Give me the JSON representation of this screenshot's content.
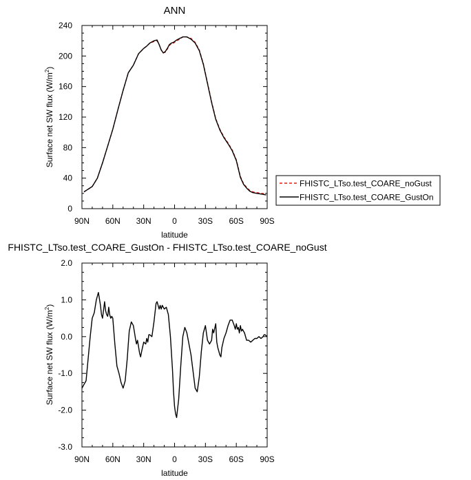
{
  "chart_data": [
    {
      "type": "line",
      "title": "ANN",
      "xlabel": "latitude",
      "ylabel": "Surface net SW flux (W/m",
      "ylabel_sup": "2",
      "ylabel_close": ")",
      "xlim": [
        90,
        -90
      ],
      "ylim": [
        0,
        240
      ],
      "xticks": [
        {
          "value": 90,
          "label": "90N"
        },
        {
          "value": 60,
          "label": "60N"
        },
        {
          "value": 30,
          "label": "30N"
        },
        {
          "value": 0,
          "label": "0"
        },
        {
          "value": -30,
          "label": "30S"
        },
        {
          "value": -60,
          "label": "60S"
        },
        {
          "value": -90,
          "label": "90S"
        }
      ],
      "yticks": [
        {
          "value": 0,
          "label": "0"
        },
        {
          "value": 40,
          "label": "40"
        },
        {
          "value": 80,
          "label": "80"
        },
        {
          "value": 120,
          "label": "120"
        },
        {
          "value": 160,
          "label": "160"
        },
        {
          "value": 200,
          "label": "200"
        },
        {
          "value": 240,
          "label": "240"
        }
      ],
      "legend_position": "right",
      "x": [
        88,
        80,
        75,
        70,
        65,
        60,
        55,
        50,
        45,
        40,
        35,
        30,
        27,
        24,
        20,
        17,
        15,
        13,
        11,
        9,
        7,
        5,
        3,
        1,
        -2,
        -5,
        -8,
        -12,
        -16,
        -20,
        -24,
        -28,
        -32,
        -36,
        -40,
        -44,
        -48,
        -52,
        -56,
        -60,
        -64,
        -67,
        -70,
        -73,
        -76,
        -80,
        -85,
        -89
      ],
      "series": [
        {
          "name": "FHISTC_LTso.test_COARE_noGust",
          "color": "#e8190f",
          "dash": "dashed",
          "values": [
            22,
            29,
            40,
            60,
            82,
            104,
            130,
            155,
            178,
            188,
            203,
            210,
            213,
            217,
            219,
            220,
            215,
            208,
            204,
            205,
            209,
            214,
            216,
            217,
            220,
            222,
            225,
            225,
            223,
            218,
            208,
            190,
            165,
            140,
            118,
            104,
            94,
            86,
            77,
            64,
            42,
            33,
            28,
            24,
            22,
            21,
            20,
            19
          ]
        },
        {
          "name": "FHISTC_LTso.test_COARE_GustOn",
          "color": "#000000",
          "dash": "solid",
          "values": [
            22,
            29,
            40,
            60,
            82,
            104,
            130,
            155,
            178,
            188,
            203,
            210,
            213,
            217,
            220,
            221,
            215,
            208,
            204,
            206,
            210,
            215,
            217,
            218,
            221,
            223,
            225,
            225,
            222,
            217,
            207,
            189,
            164,
            139,
            117,
            103,
            93,
            85,
            76,
            63,
            41,
            32,
            27,
            23,
            21,
            20,
            19,
            18
          ]
        }
      ]
    },
    {
      "type": "line",
      "title": "FHISTC_LTso.test_COARE_GustOn - FHISTC_LTso.test_COARE_noGust",
      "xlabel": "latitude",
      "ylabel": "Surface net SW flux (W/m",
      "ylabel_sup": "2",
      "ylabel_close": ")",
      "xlim": [
        90,
        -90
      ],
      "ylim": [
        -3.0,
        2.0
      ],
      "xticks": [
        {
          "value": 90,
          "label": "90N"
        },
        {
          "value": 60,
          "label": "60N"
        },
        {
          "value": 30,
          "label": "30N"
        },
        {
          "value": 0,
          "label": "0"
        },
        {
          "value": -30,
          "label": "30S"
        },
        {
          "value": -60,
          "label": "60S"
        },
        {
          "value": -90,
          "label": "90S"
        }
      ],
      "yticks": [
        {
          "value": -3.0,
          "label": "-3.0"
        },
        {
          "value": -2.0,
          "label": "-2.0"
        },
        {
          "value": -1.0,
          "label": "-1.0"
        },
        {
          "value": 0.0,
          "label": "0.0"
        },
        {
          "value": 1.0,
          "label": "1.0"
        },
        {
          "value": 2.0,
          "label": "2.0"
        }
      ],
      "series": [
        {
          "color": "#000000",
          "dash": "solid",
          "x": [
            90,
            88,
            86,
            84,
            82,
            80,
            78,
            76,
            74,
            72,
            71,
            70,
            68,
            67,
            66,
            65,
            64,
            63,
            62,
            61,
            60,
            58,
            56,
            54,
            52,
            50,
            48,
            46,
            45,
            44,
            42,
            40,
            38,
            37,
            36,
            34,
            33,
            32,
            30,
            28,
            27,
            26,
            25,
            24,
            22,
            20,
            18,
            17,
            16,
            15,
            14,
            13,
            12,
            11,
            10,
            8,
            6,
            4,
            2,
            1,
            0,
            -1,
            -2,
            -4,
            -6,
            -8,
            -10,
            -12,
            -14,
            -16,
            -18,
            -20,
            -22,
            -24,
            -26,
            -28,
            -30,
            -32,
            -34,
            -36,
            -37,
            -38,
            -40,
            -41,
            -42,
            -44,
            -45,
            -46,
            -48,
            -50,
            -52,
            -54,
            -56,
            -58,
            -59,
            -60,
            -61,
            -62,
            -63,
            -64,
            -65,
            -66,
            -68,
            -70,
            -72,
            -74,
            -76,
            -78,
            -80,
            -82,
            -84,
            -86,
            -87,
            -88,
            -90
          ],
          "values": [
            -1.4,
            -1.3,
            -1.2,
            -0.6,
            0.0,
            0.5,
            0.65,
            1.0,
            1.2,
            0.85,
            0.6,
            0.5,
            0.95,
            0.7,
            0.6,
            0.55,
            0.8,
            0.6,
            0.5,
            0.55,
            0.5,
            -0.2,
            -0.8,
            -1.0,
            -1.25,
            -1.4,
            -1.2,
            -0.6,
            -0.2,
            0.15,
            0.4,
            0.3,
            -0.05,
            -0.2,
            -0.1,
            -0.45,
            -0.55,
            -0.4,
            -0.15,
            -0.2,
            -0.05,
            -0.15,
            0.05,
            0.05,
            0.0,
            0.4,
            0.9,
            0.95,
            0.85,
            0.75,
            0.85,
            0.75,
            0.85,
            0.8,
            0.75,
            0.8,
            0.6,
            0.0,
            -0.9,
            -1.5,
            -1.9,
            -2.1,
            -2.2,
            -1.7,
            -0.8,
            0.0,
            0.25,
            0.1,
            -0.2,
            -0.5,
            -0.95,
            -1.4,
            -1.5,
            -1.1,
            -0.4,
            0.1,
            0.3,
            -0.1,
            -0.2,
            -0.1,
            0.2,
            0.1,
            0.35,
            -0.15,
            -0.3,
            -0.5,
            -0.55,
            -0.3,
            -0.05,
            0.1,
            0.3,
            0.45,
            0.45,
            0.3,
            0.2,
            0.35,
            0.2,
            0.25,
            0.1,
            0.3,
            0.15,
            0.2,
            0.1,
            -0.1,
            -0.1,
            -0.15,
            -0.1,
            -0.05,
            -0.05,
            0.0,
            -0.05,
            0.0,
            0.05,
            0.05,
            0.0
          ]
        }
      ]
    }
  ]
}
